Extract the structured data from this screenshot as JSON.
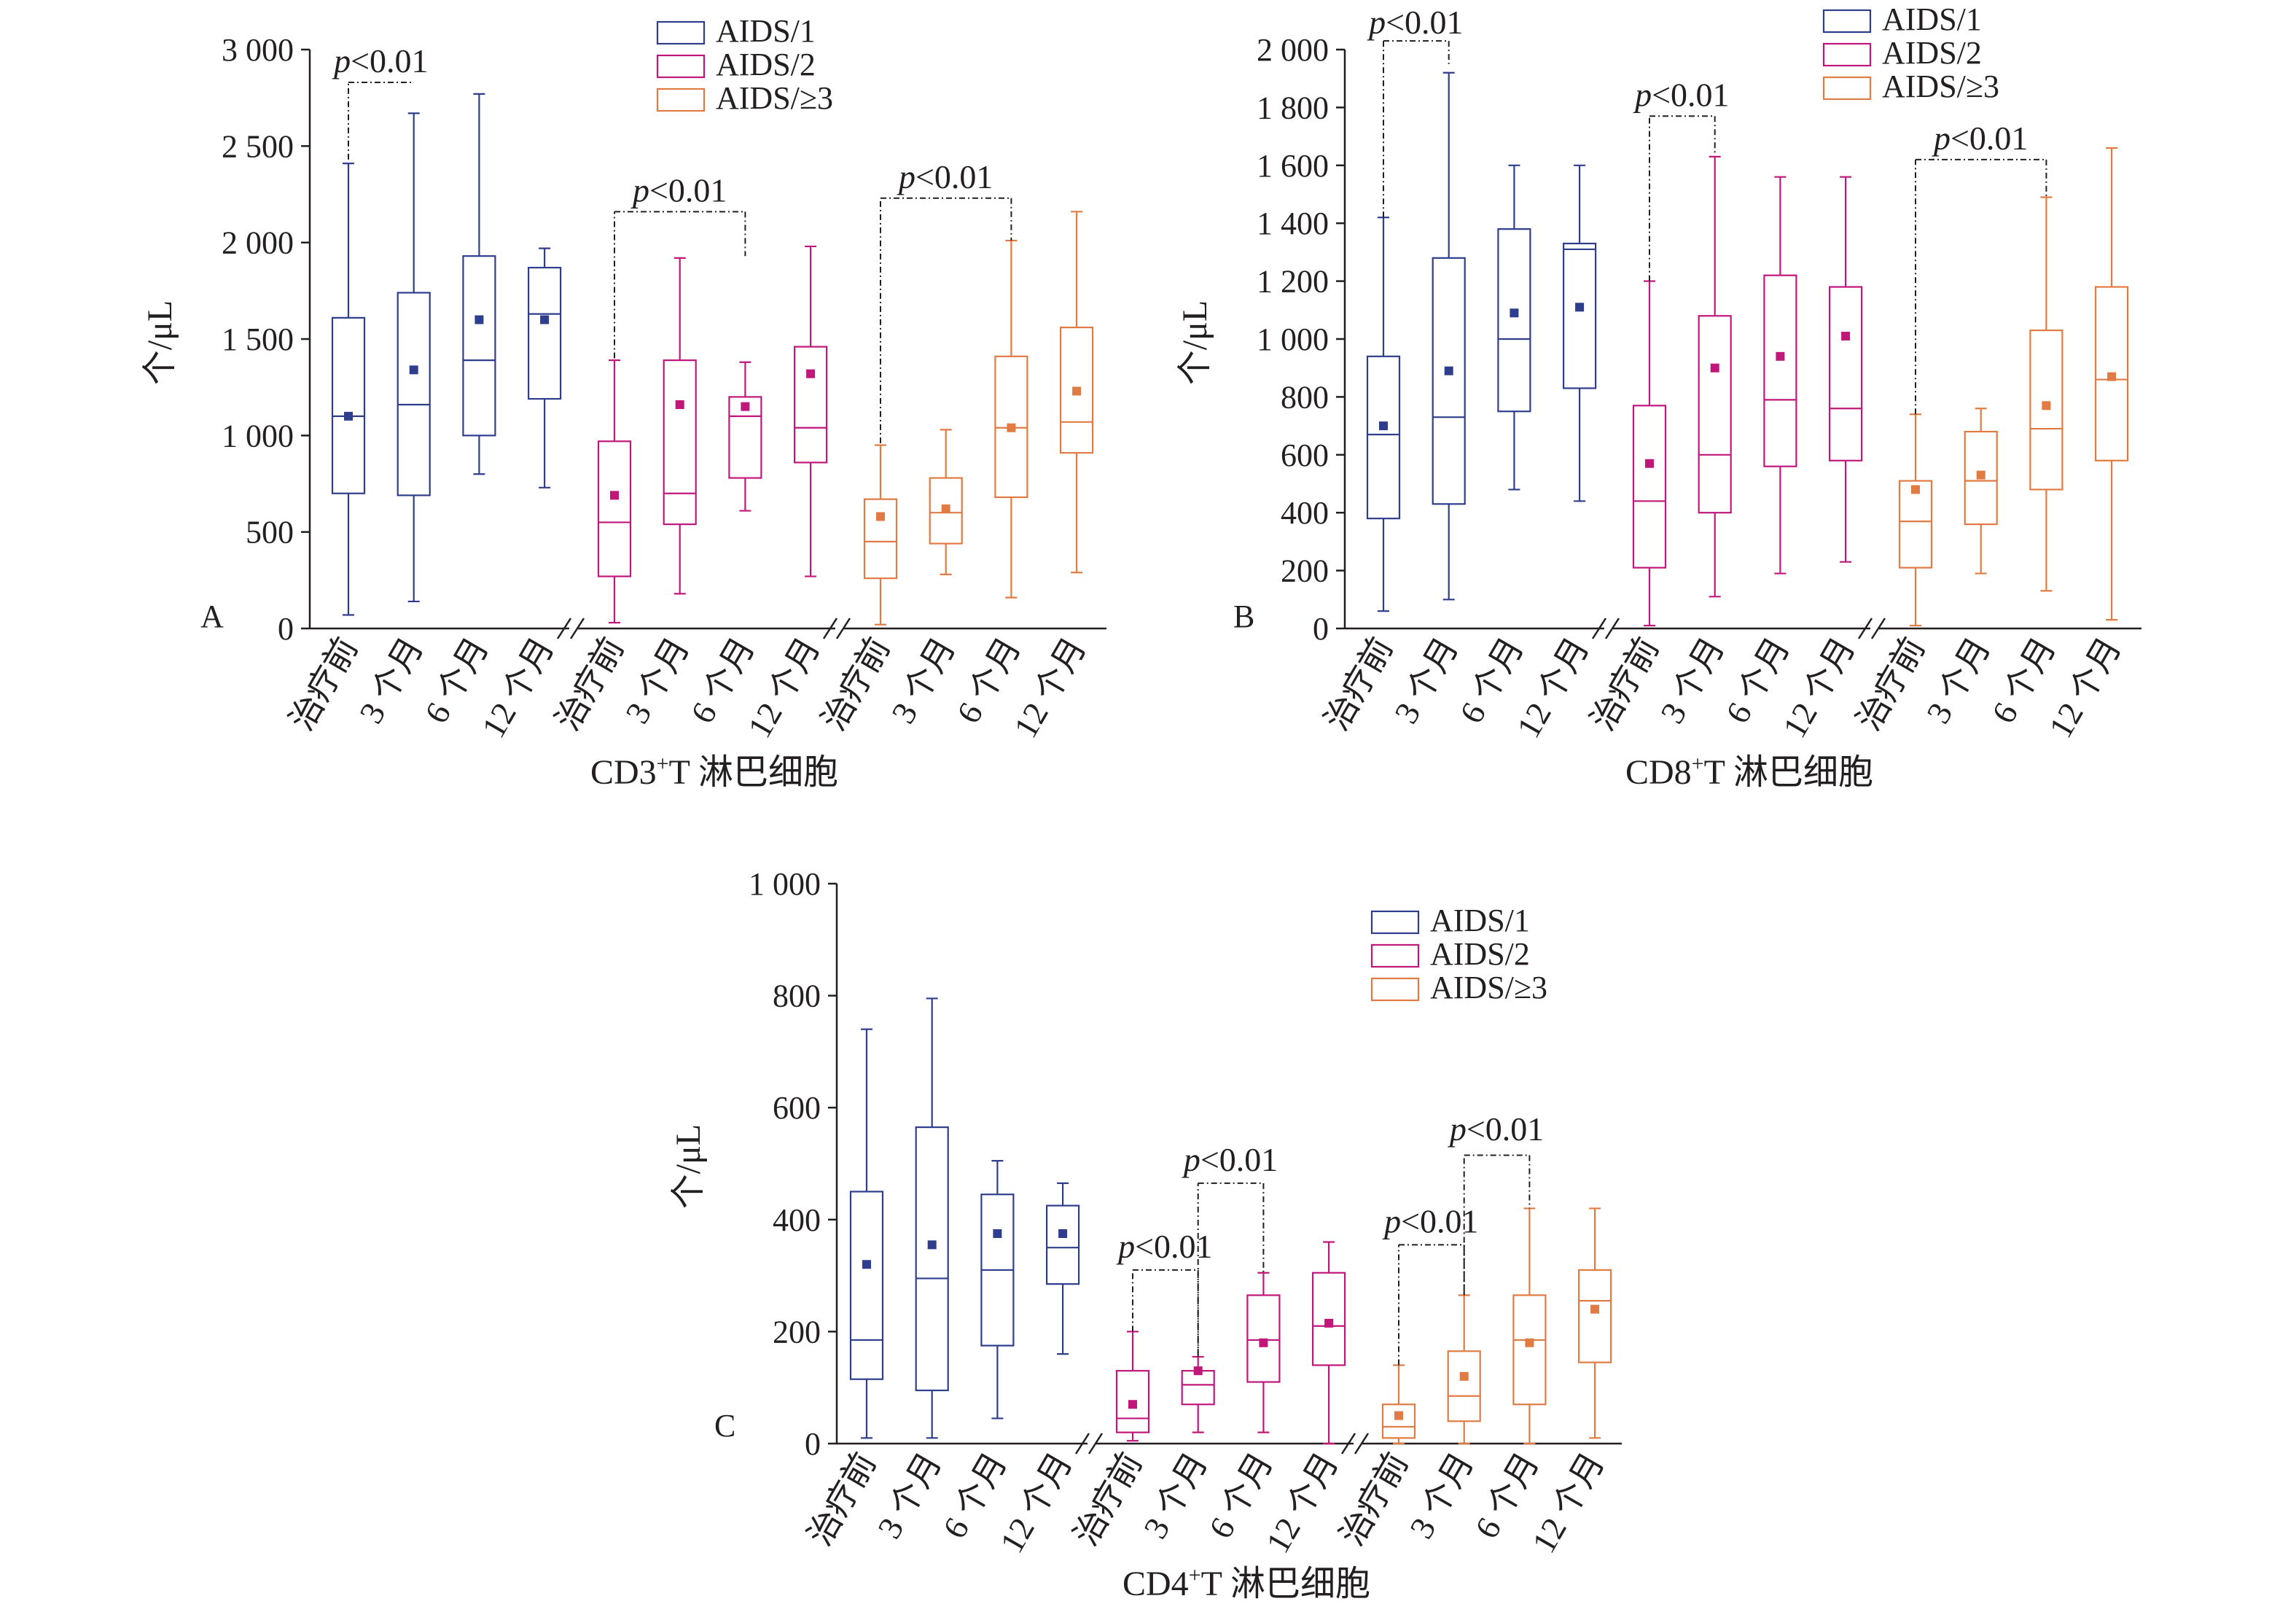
{
  "chart_data": [
    {
      "panel": "A",
      "type": "box",
      "title": "CD3⁺T 淋巴细胞",
      "xlabel_main": "CD3",
      "xlabel_sup": "+",
      "xlabel_rest": "T 淋巴细胞",
      "ylabel": "个/μL",
      "ylim": [
        0,
        3000
      ],
      "yticks": [
        0,
        500,
        1000,
        1500,
        2000,
        2500,
        3000
      ],
      "ytick_labels": [
        "0",
        "500",
        "1 000",
        "1 500",
        "2 000",
        "2 500",
        "3 000"
      ],
      "categories": [
        "治疗前",
        "3 个月",
        "6 个月",
        "12 个月"
      ],
      "legend": [
        "AIDS/1",
        "AIDS/2",
        "AIDS/≥3"
      ],
      "series": [
        {
          "name": "AIDS/1",
          "color": "#2e3e8c",
          "boxes": [
            {
              "min": 70,
              "q1": 700,
              "median": 1100,
              "q3": 1610,
              "max": 2410,
              "mean": 1100
            },
            {
              "min": 140,
              "q1": 690,
              "median": 1160,
              "q3": 1740,
              "max": 2670,
              "mean": 1340
            },
            {
              "min": 800,
              "q1": 1000,
              "median": 1390,
              "q3": 1930,
              "max": 2770,
              "mean": 1600
            },
            {
              "min": 730,
              "q1": 1190,
              "median": 1630,
              "q3": 1870,
              "max": 1970,
              "mean": 1600
            }
          ]
        },
        {
          "name": "AIDS/2",
          "color": "#c1177b",
          "boxes": [
            {
              "min": 30,
              "q1": 270,
              "median": 550,
              "q3": 970,
              "max": 1390,
              "mean": 690
            },
            {
              "min": 180,
              "q1": 540,
              "median": 700,
              "q3": 1390,
              "max": 1920,
              "mean": 1160
            },
            {
              "min": 610,
              "q1": 780,
              "median": 1100,
              "q3": 1200,
              "max": 1380,
              "mean": 1150
            },
            {
              "min": 270,
              "q1": 860,
              "median": 1040,
              "q3": 1460,
              "max": 1980,
              "mean": 1320
            }
          ]
        },
        {
          "name": "AIDS/≥3",
          "color": "#e07b43",
          "boxes": [
            {
              "min": 20,
              "q1": 260,
              "median": 450,
              "q3": 670,
              "max": 950,
              "mean": 580
            },
            {
              "min": 280,
              "q1": 440,
              "median": 600,
              "q3": 780,
              "max": 1030,
              "mean": 620
            },
            {
              "min": 160,
              "q1": 680,
              "median": 1040,
              "q3": 1410,
              "max": 2010,
              "mean": 1040
            },
            {
              "min": 290,
              "q1": 910,
              "median": 1070,
              "q3": 1560,
              "max": 2160,
              "mean": 1230
            }
          ]
        }
      ],
      "annotations": [
        {
          "text_p": "p",
          "text_rest": "<0.01",
          "group": 0,
          "from": 0,
          "to": 1,
          "y_level": 2830,
          "y_left": 2430,
          "y_right": 2830,
          "label_y": 2920
        },
        {
          "text_p": "p",
          "text_rest": "<0.01",
          "group": 1,
          "from": 0,
          "to": 2,
          "y_level": 2160,
          "y_left": 1400,
          "y_right": 1930,
          "label_y": 2250
        },
        {
          "text_p": "p",
          "text_rest": "<0.01",
          "group": 2,
          "from": 0,
          "to": 2,
          "y_level": 2230,
          "y_left": 960,
          "y_right": 2010,
          "label_y": 2320
        }
      ]
    },
    {
      "panel": "B",
      "type": "box",
      "title": "CD8⁺T 淋巴细胞",
      "xlabel_main": "CD8",
      "xlabel_sup": "+",
      "xlabel_rest": "T 淋巴细胞",
      "ylabel": "个/μL",
      "ylim": [
        0,
        2000
      ],
      "yticks": [
        0,
        200,
        400,
        600,
        800,
        1000,
        1200,
        1400,
        1600,
        1800,
        2000
      ],
      "ytick_labels": [
        "0",
        "200",
        "400",
        "600",
        "800",
        "1 000",
        "1 200",
        "1 400",
        "1 600",
        "1 800",
        "2 000"
      ],
      "categories": [
        "治疗前",
        "3 个月",
        "6 个月",
        "12 个月"
      ],
      "legend": [
        "AIDS/1",
        "AIDS/2",
        "AIDS/≥3"
      ],
      "series": [
        {
          "name": "AIDS/1",
          "color": "#2e3e8c",
          "boxes": [
            {
              "min": 60,
              "q1": 380,
              "median": 670,
              "q3": 940,
              "max": 1420,
              "mean": 700
            },
            {
              "min": 100,
              "q1": 430,
              "median": 730,
              "q3": 1280,
              "max": 1920,
              "mean": 890
            },
            {
              "min": 480,
              "q1": 750,
              "median": 1000,
              "q3": 1380,
              "max": 1600,
              "mean": 1090
            },
            {
              "min": 440,
              "q1": 830,
              "median": 1310,
              "q3": 1330,
              "max": 1600,
              "mean": 1110
            }
          ]
        },
        {
          "name": "AIDS/2",
          "color": "#c1177b",
          "boxes": [
            {
              "min": 10,
              "q1": 210,
              "median": 440,
              "q3": 770,
              "max": 1200,
              "mean": 570
            },
            {
              "min": 110,
              "q1": 400,
              "median": 600,
              "q3": 1080,
              "max": 1630,
              "mean": 900
            },
            {
              "min": 190,
              "q1": 560,
              "median": 790,
              "q3": 1220,
              "max": 1560,
              "mean": 940
            },
            {
              "min": 230,
              "q1": 580,
              "median": 760,
              "q3": 1180,
              "max": 1560,
              "mean": 1010
            }
          ]
        },
        {
          "name": "AIDS/≥3",
          "color": "#e07b43",
          "boxes": [
            {
              "min": 10,
              "q1": 210,
              "median": 370,
              "q3": 510,
              "max": 740,
              "mean": 480
            },
            {
              "min": 190,
              "q1": 360,
              "median": 510,
              "q3": 680,
              "max": 760,
              "mean": 530
            },
            {
              "min": 130,
              "q1": 480,
              "median": 690,
              "q3": 1030,
              "max": 1490,
              "mean": 770
            },
            {
              "min": 30,
              "q1": 580,
              "median": 860,
              "q3": 1180,
              "max": 1660,
              "mean": 870
            }
          ]
        }
      ],
      "annotations": [
        {
          "text_p": "p",
          "text_rest": "<0.01",
          "group": 0,
          "from": 0,
          "to": 1,
          "y_level": 2030,
          "y_left": 1420,
          "y_right": 1950,
          "label_y": 2080
        },
        {
          "text_p": "p",
          "text_rest": "<0.01",
          "group": 1,
          "from": 0,
          "to": 1,
          "y_level": 1770,
          "y_left": 1200,
          "y_right": 1640,
          "label_y": 1830
        },
        {
          "text_p": "p",
          "text_rest": "<0.01",
          "group": 2,
          "from": 0,
          "to": 2,
          "y_level": 1620,
          "y_left": 740,
          "y_right": 1490,
          "label_y": 1680
        }
      ]
    },
    {
      "panel": "C",
      "type": "box",
      "title": "CD4⁺T 淋巴细胞",
      "xlabel_main": "CD4",
      "xlabel_sup": "+",
      "xlabel_rest": "T 淋巴细胞",
      "ylabel": "个/μL",
      "ylim": [
        0,
        1000
      ],
      "yticks": [
        0,
        200,
        400,
        600,
        800,
        1000
      ],
      "ytick_labels": [
        "0",
        "200",
        "400",
        "600",
        "800",
        "1 000"
      ],
      "categories": [
        "治疗前",
        "3 个月",
        "6 个月",
        "12 个月"
      ],
      "legend": [
        "AIDS/1",
        "AIDS/2",
        "AIDS/≥3"
      ],
      "series": [
        {
          "name": "AIDS/1",
          "color": "#2e3e8c",
          "boxes": [
            {
              "min": 10,
              "q1": 115,
              "median": 185,
              "q3": 450,
              "max": 740,
              "mean": 320
            },
            {
              "min": 10,
              "q1": 95,
              "median": 295,
              "q3": 565,
              "max": 795,
              "mean": 355
            },
            {
              "min": 45,
              "q1": 175,
              "median": 310,
              "q3": 445,
              "max": 505,
              "mean": 375
            },
            {
              "min": 160,
              "q1": 285,
              "median": 350,
              "q3": 425,
              "max": 465,
              "mean": 375
            }
          ]
        },
        {
          "name": "AIDS/2",
          "color": "#c1177b",
          "boxes": [
            {
              "min": 5,
              "q1": 20,
              "median": 45,
              "q3": 130,
              "max": 200,
              "mean": 70
            },
            {
              "min": 20,
              "q1": 70,
              "median": 105,
              "q3": 130,
              "max": 155,
              "mean": 130
            },
            {
              "min": 20,
              "q1": 110,
              "median": 185,
              "q3": 265,
              "max": 305,
              "mean": 180
            },
            {
              "min": 0,
              "q1": 140,
              "median": 210,
              "q3": 305,
              "max": 360,
              "mean": 215
            }
          ]
        },
        {
          "name": "AIDS/≥3",
          "color": "#e07b43",
          "boxes": [
            {
              "min": 0,
              "q1": 10,
              "median": 30,
              "q3": 70,
              "max": 140,
              "mean": 50
            },
            {
              "min": 0,
              "q1": 40,
              "median": 85,
              "q3": 165,
              "max": 265,
              "mean": 120
            },
            {
              "min": 0,
              "q1": 70,
              "median": 185,
              "q3": 265,
              "max": 420,
              "mean": 180
            },
            {
              "min": 10,
              "q1": 145,
              "median": 255,
              "q3": 310,
              "max": 420,
              "mean": 240
            }
          ]
        }
      ],
      "annotations": [
        {
          "text_p": "p",
          "text_rest": "<0.01",
          "group": 1,
          "from": 0,
          "to": 1,
          "y_level": 310,
          "y_left": 200,
          "y_right": 155,
          "label_y": 345
        },
        {
          "text_p": "p",
          "text_rest": "<0.01",
          "group": 1,
          "from": 1,
          "to": 2,
          "y_level": 465,
          "y_left": 155,
          "y_right": 305,
          "label_y": 500
        },
        {
          "text_p": "p",
          "text_rest": "<0.01",
          "group": 2,
          "from": 0,
          "to": 1,
          "y_level": 355,
          "y_left": 140,
          "y_right": 265,
          "label_y": 390
        },
        {
          "text_p": "p",
          "text_rest": "<0.01",
          "group": 2,
          "from": 1,
          "to": 2,
          "y_level": 515,
          "y_left": 265,
          "y_right": 420,
          "label_y": 555
        }
      ]
    }
  ]
}
